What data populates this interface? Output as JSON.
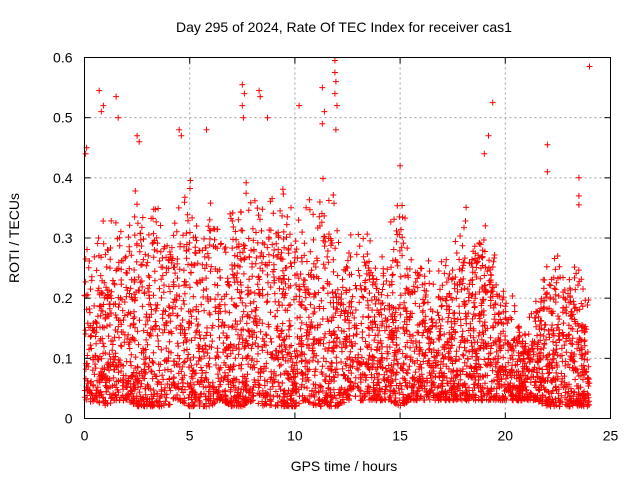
{
  "chart_data": {
    "type": "scatter",
    "title": "Day 295 of 2024, Rate Of TEC Index for receiver cas1",
    "xlabel": "GPS time / hours",
    "ylabel": "ROTI / TECUs",
    "xlim": [
      0,
      25
    ],
    "ylim": [
      0,
      0.6
    ],
    "xticks": [
      0,
      5,
      10,
      15,
      20,
      25
    ],
    "yticks": [
      0,
      0.1,
      0.2,
      0.3,
      0.4,
      0.5,
      0.6
    ],
    "xtick_labels": [
      "0",
      "5",
      "10",
      "15",
      "20",
      "25"
    ],
    "ytick_labels": [
      "0",
      "0.1",
      "0.2",
      "0.3",
      "0.4",
      "0.5",
      "0.6"
    ],
    "grid": true,
    "marker": "+",
    "series_color": "#ff0000",
    "envelope": {
      "x": [
        0,
        0.5,
        1,
        1.5,
        2,
        2.5,
        3,
        3.5,
        4,
        4.5,
        5,
        5.5,
        6,
        6.5,
        7,
        7.5,
        8,
        8.5,
        9,
        9.5,
        10,
        10.5,
        11,
        11.5,
        12,
        12.5,
        13,
        13.5,
        14,
        14.5,
        15,
        15.5,
        16,
        16.5,
        17,
        17.5,
        18,
        18.5,
        19,
        19.5,
        20,
        20.5,
        21,
        21.5,
        22,
        22.5,
        23,
        23.5,
        24
      ],
      "upper": [
        0.3,
        0.28,
        0.33,
        0.34,
        0.3,
        0.36,
        0.36,
        0.34,
        0.33,
        0.35,
        0.38,
        0.35,
        0.37,
        0.33,
        0.32,
        0.36,
        0.4,
        0.36,
        0.35,
        0.38,
        0.32,
        0.34,
        0.35,
        0.37,
        0.34,
        0.28,
        0.3,
        0.3,
        0.27,
        0.3,
        0.35,
        0.28,
        0.26,
        0.25,
        0.24,
        0.3,
        0.32,
        0.33,
        0.34,
        0.26,
        0.2,
        0.18,
        0.15,
        0.2,
        0.26,
        0.27,
        0.24,
        0.25,
        0.2
      ],
      "lower": [
        0.02,
        0.03,
        0.02,
        0.03,
        0.03,
        0.02,
        0.02,
        0.02,
        0.02,
        0.03,
        0.02,
        0.02,
        0.02,
        0.03,
        0.02,
        0.02,
        0.03,
        0.02,
        0.02,
        0.02,
        0.02,
        0.03,
        0.02,
        0.02,
        0.02,
        0.03,
        0.03,
        0.03,
        0.03,
        0.03,
        0.02,
        0.03,
        0.03,
        0.03,
        0.03,
        0.03,
        0.03,
        0.03,
        0.03,
        0.03,
        0.03,
        0.03,
        0.03,
        0.03,
        0.02,
        0.02,
        0.02,
        0.02,
        0.02
      ],
      "density_points": 4200
    },
    "outliers": [
      {
        "x": 0.05,
        "y": 0.44
      },
      {
        "x": 0.1,
        "y": 0.45
      },
      {
        "x": 0.7,
        "y": 0.545
      },
      {
        "x": 0.8,
        "y": 0.51
      },
      {
        "x": 0.9,
        "y": 0.52
      },
      {
        "x": 1.5,
        "y": 0.535
      },
      {
        "x": 1.6,
        "y": 0.5
      },
      {
        "x": 2.5,
        "y": 0.47
      },
      {
        "x": 2.6,
        "y": 0.46
      },
      {
        "x": 4.5,
        "y": 0.48
      },
      {
        "x": 4.6,
        "y": 0.47
      },
      {
        "x": 5.8,
        "y": 0.48
      },
      {
        "x": 7.5,
        "y": 0.555
      },
      {
        "x": 7.6,
        "y": 0.54
      },
      {
        "x": 7.5,
        "y": 0.52
      },
      {
        "x": 7.55,
        "y": 0.5
      },
      {
        "x": 8.3,
        "y": 0.545
      },
      {
        "x": 8.35,
        "y": 0.535
      },
      {
        "x": 8.7,
        "y": 0.5
      },
      {
        "x": 10.2,
        "y": 0.52
      },
      {
        "x": 11.3,
        "y": 0.55
      },
      {
        "x": 11.4,
        "y": 0.51
      },
      {
        "x": 11.3,
        "y": 0.49
      },
      {
        "x": 11.9,
        "y": 0.595
      },
      {
        "x": 11.9,
        "y": 0.575
      },
      {
        "x": 11.95,
        "y": 0.56
      },
      {
        "x": 11.9,
        "y": 0.54
      },
      {
        "x": 12.0,
        "y": 0.52
      },
      {
        "x": 11.95,
        "y": 0.48
      },
      {
        "x": 15.0,
        "y": 0.42
      },
      {
        "x": 19.0,
        "y": 0.44
      },
      {
        "x": 19.2,
        "y": 0.47
      },
      {
        "x": 19.4,
        "y": 0.525
      },
      {
        "x": 22.0,
        "y": 0.455
      },
      {
        "x": 22.0,
        "y": 0.41
      },
      {
        "x": 23.5,
        "y": 0.4
      },
      {
        "x": 23.5,
        "y": 0.37
      },
      {
        "x": 23.5,
        "y": 0.355
      },
      {
        "x": 24.0,
        "y": 0.585
      }
    ]
  }
}
